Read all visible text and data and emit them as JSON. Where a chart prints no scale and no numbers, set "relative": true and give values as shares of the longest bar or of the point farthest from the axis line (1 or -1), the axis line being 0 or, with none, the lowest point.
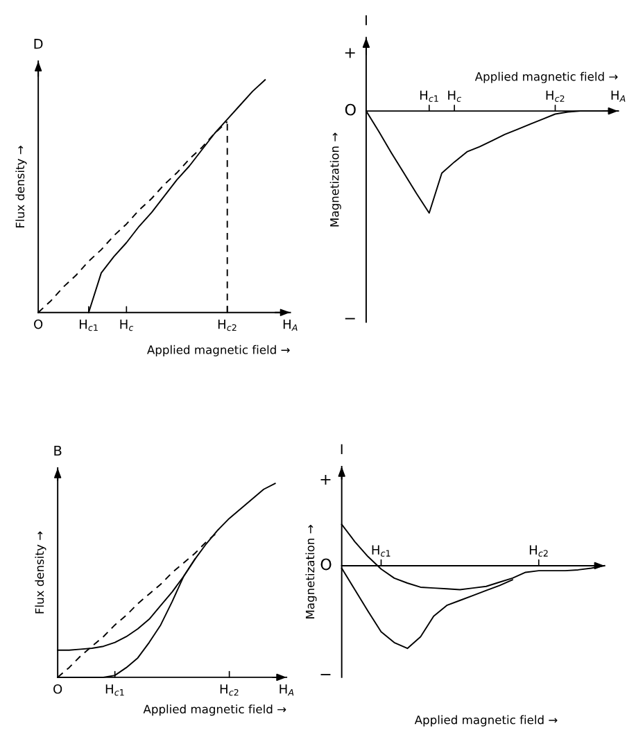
{
  "chart_data": [
    {
      "type": "line",
      "relative": true,
      "xlabel": "Applied magnetic field →",
      "ylabel": "Flux density →",
      "annotations": [
        "D"
      ],
      "categories": [
        "O",
        null,
        null,
        null,
        "H$_{c1}$",
        null,
        null,
        "H$_{c}$",
        null,
        null,
        null,
        null,
        null,
        null,
        null,
        "H$_{c2}$",
        null,
        null,
        null,
        null,
        "H$_{A}$"
      ],
      "series": [
        {
          "color": "#000000",
          "line_style": "solid",
          "values": [
            null,
            null,
            null,
            null,
            0,
            0.17,
            0.24,
            0.3,
            0.37,
            0.43,
            0.5,
            0.57,
            0.63,
            0.7,
            0.77,
            0.83,
            0.89,
            0.95,
            1.0,
            null,
            null
          ]
        },
        {
          "color": "#000000",
          "line_style": "dashed",
          "values": [
            0,
            0.05,
            0.11,
            0.16,
            0.22,
            0.27,
            0.33,
            0.38,
            0.44,
            0.49,
            0.55,
            0.6,
            0.66,
            0.71,
            0.77,
            0.82,
            null,
            null,
            null,
            null,
            null
          ]
        }
      ],
      "ref_lines": [
        {
          "axis": "x",
          "value": "H$_{c2}$",
          "line_style": "dashed"
        }
      ]
    },
    {
      "type": "line",
      "relative": true,
      "xlabel": "Applied magnetic field →",
      "ylabel": "Magnetization →",
      "annotations": [
        "I",
        "+",
        "O",
        "−"
      ],
      "categories": [
        null,
        null,
        null,
        null,
        null,
        "H$_{c1}$",
        null,
        "H$_{c}$",
        null,
        null,
        null,
        null,
        null,
        null,
        null,
        "H$_{c2}$",
        null,
        null,
        null,
        null,
        "H$_{A}$"
      ],
      "series": [
        {
          "color": "#000000",
          "line_style": "solid",
          "values": [
            0,
            -0.2,
            -0.41,
            -0.61,
            -0.81,
            -1.0,
            -0.61,
            -0.5,
            -0.4,
            -0.35,
            -0.29,
            -0.23,
            -0.18,
            -0.13,
            -0.08,
            -0.03,
            -0.01,
            0,
            0,
            0,
            0
          ]
        }
      ]
    },
    {
      "type": "line",
      "relative": true,
      "xlabel": "Applied magnetic field →",
      "ylabel": "Flux density →",
      "annotations": [
        "B"
      ],
      "categories": [
        "O",
        null,
        null,
        null,
        null,
        "H$_{c1}$",
        null,
        null,
        null,
        null,
        null,
        null,
        null,
        null,
        null,
        "H$_{c2}$",
        null,
        null,
        null,
        null,
        "H$_{A}$"
      ],
      "series": [
        {
          "color": "#000000",
          "line_style": "solid",
          "values": [
            0.14,
            0.14,
            0.145,
            0.15,
            0.16,
            0.18,
            0.21,
            0.25,
            0.3,
            0.37,
            0.44,
            0.52,
            0.61,
            0.69,
            0.76,
            0.82,
            0.87,
            0.92,
            0.97,
            1.0,
            null
          ]
        },
        {
          "color": "#000000",
          "line_style": "solid",
          "values": [
            0,
            0,
            0,
            0,
            0,
            0.01,
            0.05,
            0.1,
            0.18,
            0.27,
            0.39,
            0.52,
            0.61,
            null,
            null,
            null,
            null,
            null,
            null,
            null,
            null
          ]
        },
        {
          "color": "#000000",
          "line_style": "dashed",
          "values": [
            0,
            0.05,
            0.11,
            0.16,
            0.21,
            0.27,
            0.32,
            0.38,
            0.43,
            0.48,
            0.54,
            0.59,
            0.64,
            0.7,
            0.75,
            null,
            null,
            null,
            null,
            null,
            null
          ]
        }
      ]
    },
    {
      "type": "line",
      "relative": true,
      "xlabel": "Applied magnetic field →",
      "ylabel": "Magnetization →",
      "annotations": [
        "I",
        "+",
        "O",
        "−"
      ],
      "categories": [
        null,
        null,
        null,
        "H$_{c1}$",
        null,
        null,
        null,
        null,
        null,
        null,
        null,
        null,
        null,
        null,
        null,
        "H$_{c2}$",
        null,
        null,
        null,
        null,
        null
      ],
      "series": [
        {
          "color": "#000000",
          "line_style": "solid",
          "values": [
            0.5,
            0.29,
            0.11,
            -0.04,
            -0.15,
            -0.21,
            -0.26,
            -0.27,
            -0.28,
            -0.29,
            -0.27,
            -0.25,
            -0.2,
            -0.15,
            -0.08,
            -0.06,
            -0.06,
            -0.06,
            -0.05,
            -0.03,
            0
          ]
        },
        {
          "color": "#000000",
          "line_style": "solid",
          "values": [
            -0.03,
            -0.29,
            -0.55,
            -0.8,
            -0.93,
            -1.0,
            -0.86,
            -0.61,
            -0.48,
            -0.42,
            -0.36,
            -0.3,
            -0.24,
            -0.17,
            null,
            null,
            null,
            null,
            null,
            null,
            null
          ]
        }
      ]
    }
  ]
}
